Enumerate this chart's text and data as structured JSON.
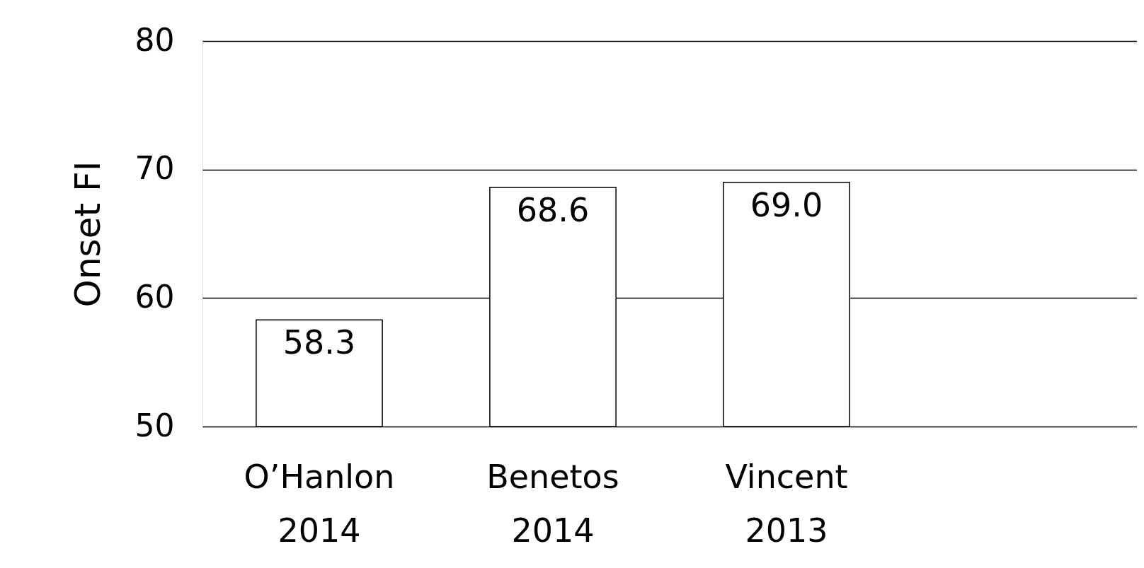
{
  "chart_data": {
    "type": "bar",
    "ylabel": "Onset FI",
    "categories": [
      "O’Hanlon\n2014",
      "Benetos\n2014",
      "Vincent\n2013",
      null
    ],
    "values": [
      58.3,
      68.6,
      69.0,
      null
    ],
    "value_labels": [
      "58.3",
      "68.6",
      "69.0",
      null
    ],
    "color": "#ffffff",
    "ylim": [
      50,
      80
    ],
    "yticks": [
      50,
      60,
      70,
      80
    ],
    "grid": "y"
  }
}
